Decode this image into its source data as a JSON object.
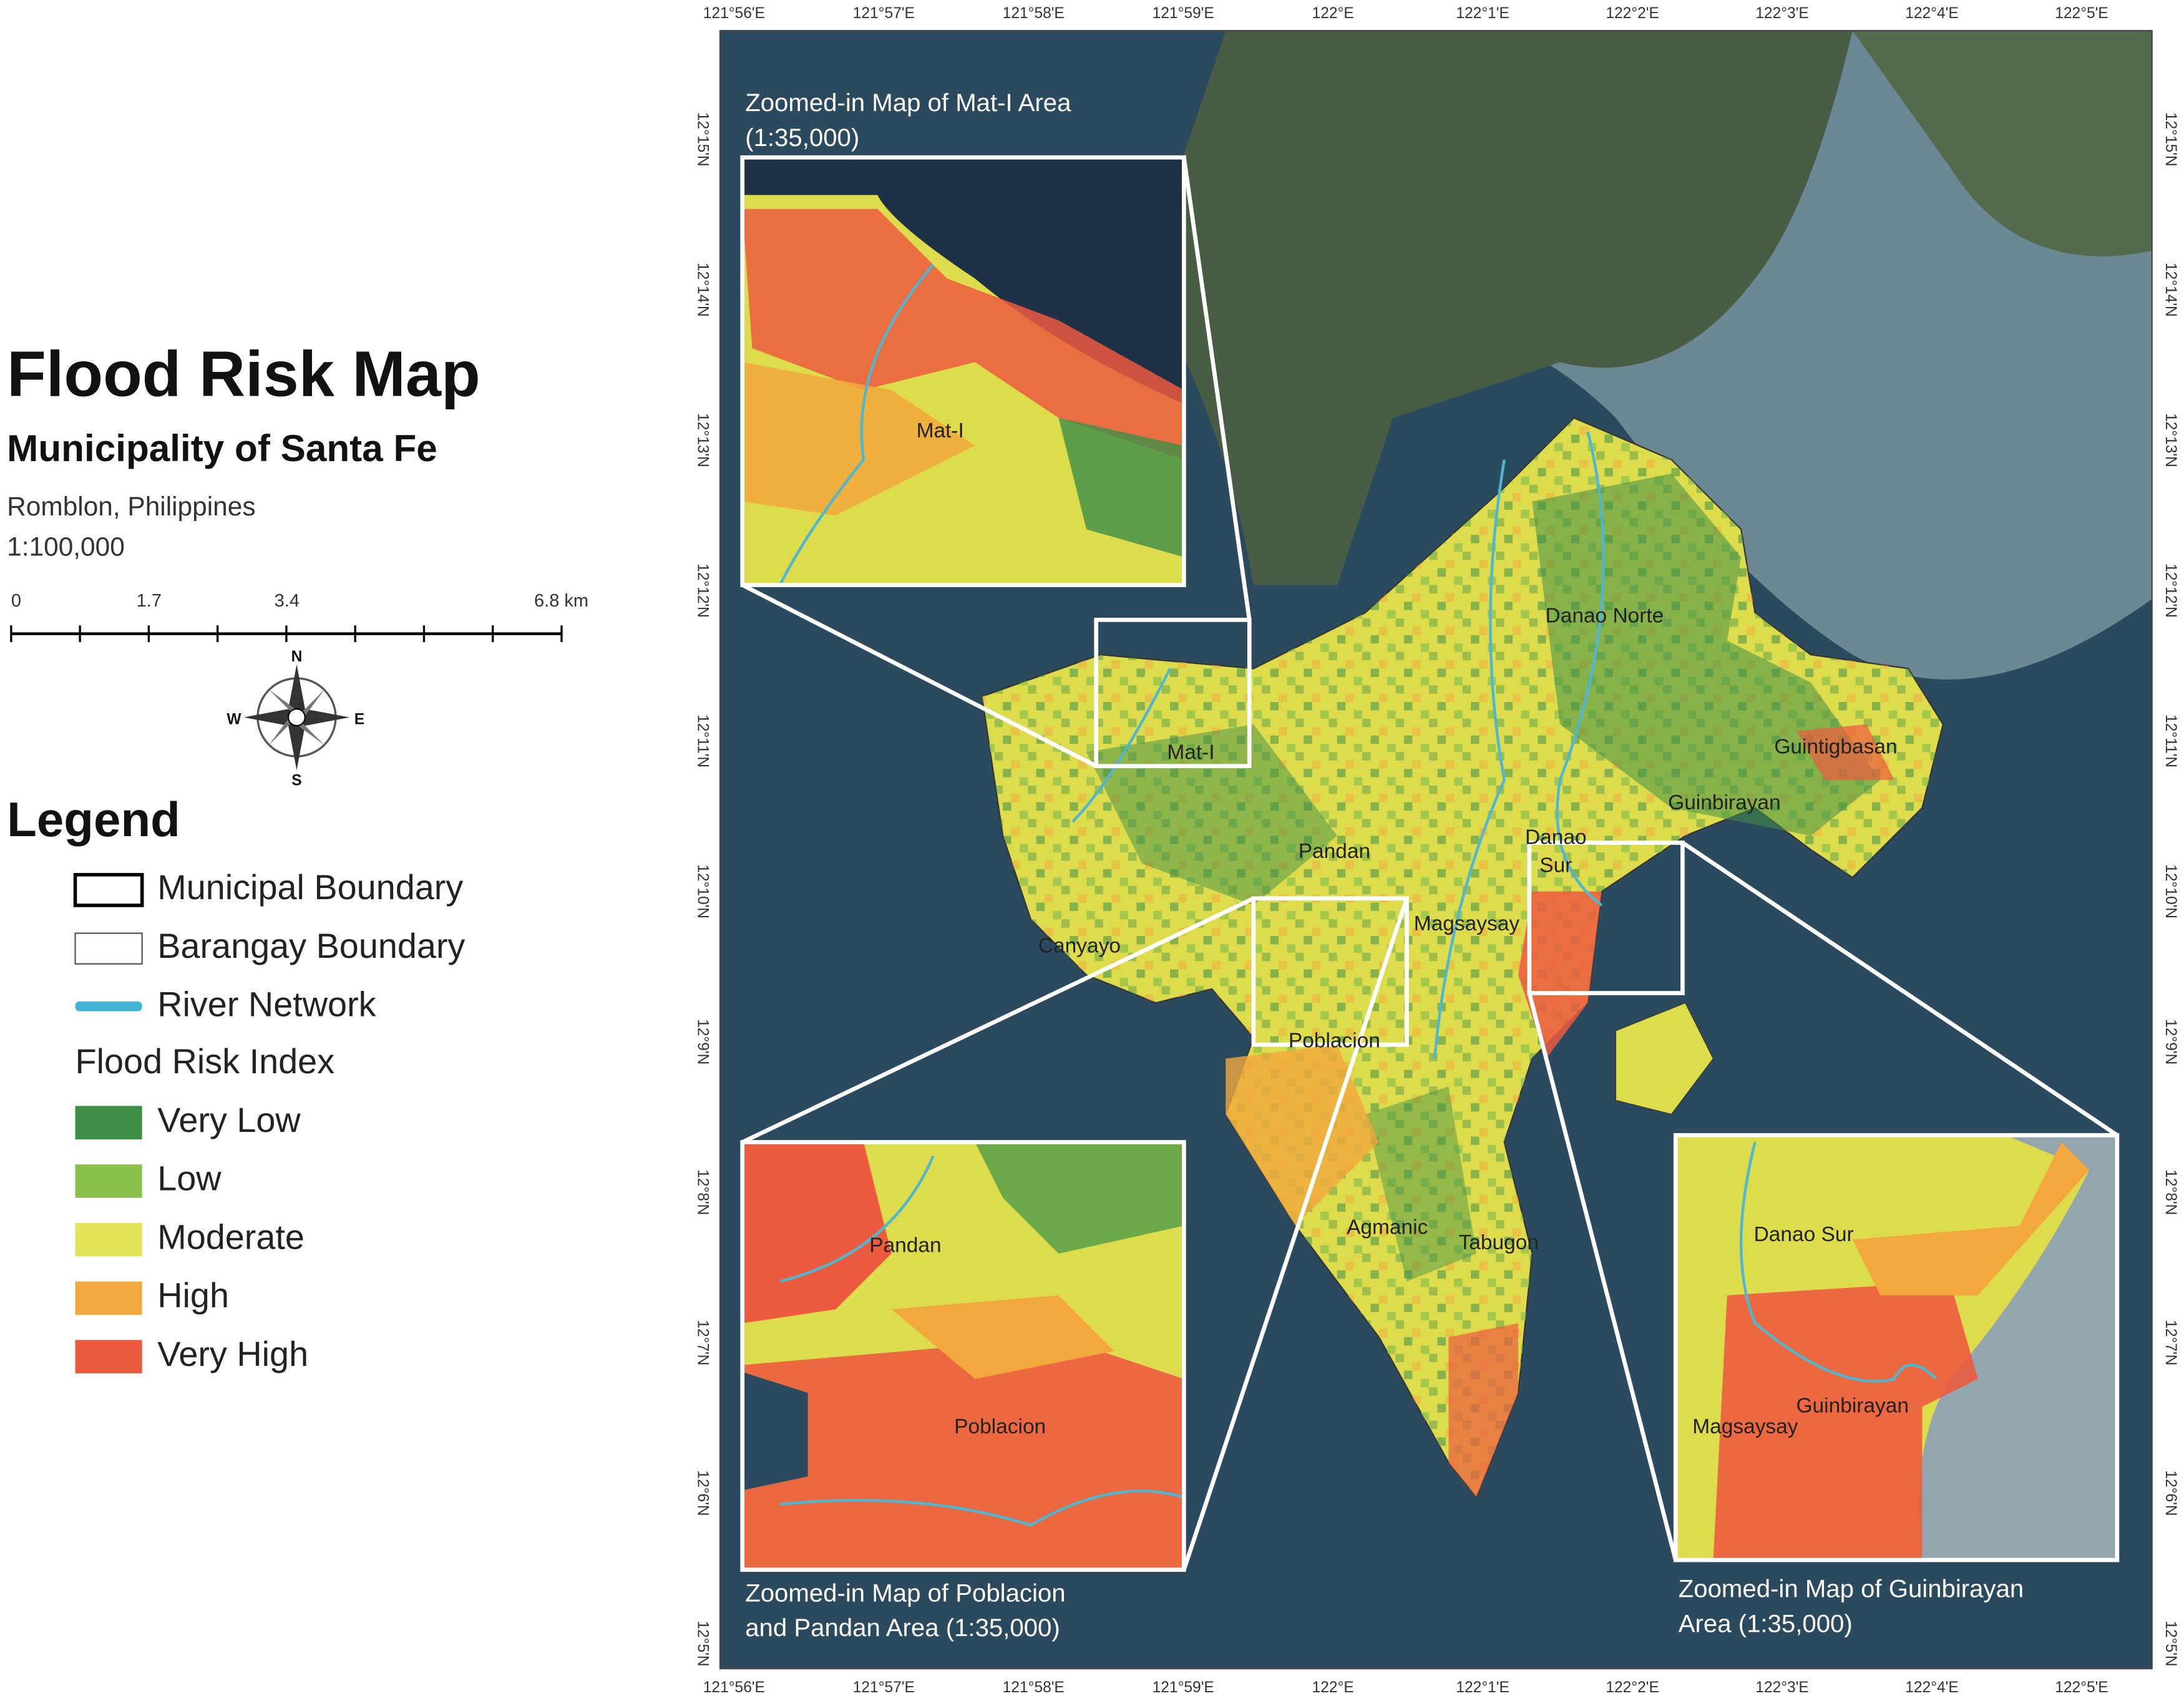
{
  "title": "Flood Risk Map",
  "subtitle": "Municipality of Santa Fe",
  "location": "Romblon, Philippines",
  "scale": "1:100,000",
  "scale_bar": [
    "0",
    "1.7",
    "3.4",
    "6.8 km"
  ],
  "compass": {
    "n": "N",
    "e": "E",
    "s": "S",
    "w": "W"
  },
  "legend": {
    "title": "Legend",
    "boundaries": [
      {
        "label": "Municipal Boundary"
      },
      {
        "label": "Barangay Boundary"
      },
      {
        "label": "River Network"
      }
    ],
    "index_title": "Flood Risk Index",
    "classes": [
      {
        "label": "Very Low",
        "color": "#3f8f47"
      },
      {
        "label": "Low",
        "color": "#8cc04c"
      },
      {
        "label": "Moderate",
        "color": "#e3e35a"
      },
      {
        "label": "High",
        "color": "#f2a83c"
      },
      {
        "label": "Very High",
        "color": "#ec5b3f"
      }
    ]
  },
  "map": {
    "lon_labels": [
      "121°56'E",
      "121°57'E",
      "121°58'E",
      "121°59'E",
      "122°E",
      "122°1'E",
      "122°2'E",
      "122°3'E",
      "122°4'E",
      "122°5'E"
    ],
    "lat_labels": [
      "12°15'N",
      "12°14'N",
      "12°13'N",
      "12°12'N",
      "12°11'N",
      "12°10'N",
      "12°9'N",
      "12°8'N",
      "12°7'N",
      "12°6'N",
      "12°5'N"
    ],
    "places": [
      "Mat-I",
      "Pandan",
      "Canyayo",
      "Magsaysay",
      "Danao Norte",
      "Guintigbasan",
      "Guinbirayan",
      "Danao",
      "Sur",
      "Agmanic",
      "Tabugon",
      "Poblacion"
    ]
  },
  "insets": [
    {
      "title": [
        "Zoomed-in Map of Mat-I Area",
        "(1:35,000)"
      ],
      "places": [
        "Mat-I"
      ]
    },
    {
      "title": [
        "Zoomed-in Map of Poblacion",
        "and Pandan Area (1:35,000)"
      ],
      "places": [
        "Pandan",
        "Poblacion"
      ]
    },
    {
      "title": [
        "Zoomed-in Map of Guinbirayan",
        "Area (1:35,000)"
      ],
      "places": [
        "Danao Sur",
        "Guinbirayan",
        "Magsaysay"
      ]
    }
  ]
}
